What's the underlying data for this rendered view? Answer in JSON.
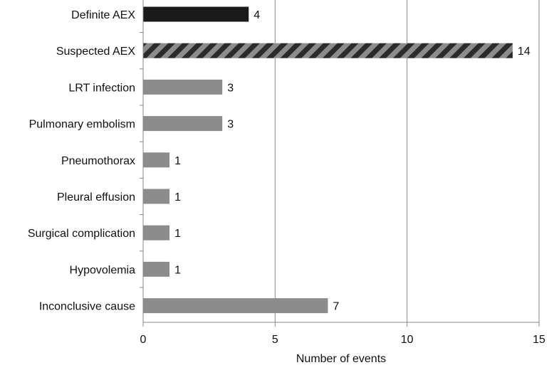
{
  "chart_data": {
    "type": "bar",
    "orientation": "horizontal",
    "title": "",
    "xlabel": "Number of events",
    "ylabel": "",
    "xlim": [
      0,
      15
    ],
    "xticks": [
      0,
      5,
      10,
      15
    ],
    "grid": "vertical gridlines at major ticks",
    "legend": "none",
    "colors": {
      "dark": "#1a1a1a",
      "gray": "#8c8c8c",
      "hatch_dark": "#2b2b2b",
      "hatch_light": "#8c8c8c",
      "grid": "#888888",
      "axis": "#888888"
    },
    "categories": [
      "Definite AEX",
      "Suspected AEX",
      "LRT infection",
      "Pulmonary embolism",
      "Pneumothorax",
      "Pleural effusion",
      "Surgical complication",
      "Hypovolemia",
      "Inconclusive cause"
    ],
    "values": [
      4,
      14,
      3,
      3,
      1,
      1,
      1,
      1,
      7
    ],
    "bar_styles": [
      "dark",
      "hatched",
      "gray",
      "gray",
      "gray",
      "gray",
      "gray",
      "gray",
      "gray"
    ]
  }
}
